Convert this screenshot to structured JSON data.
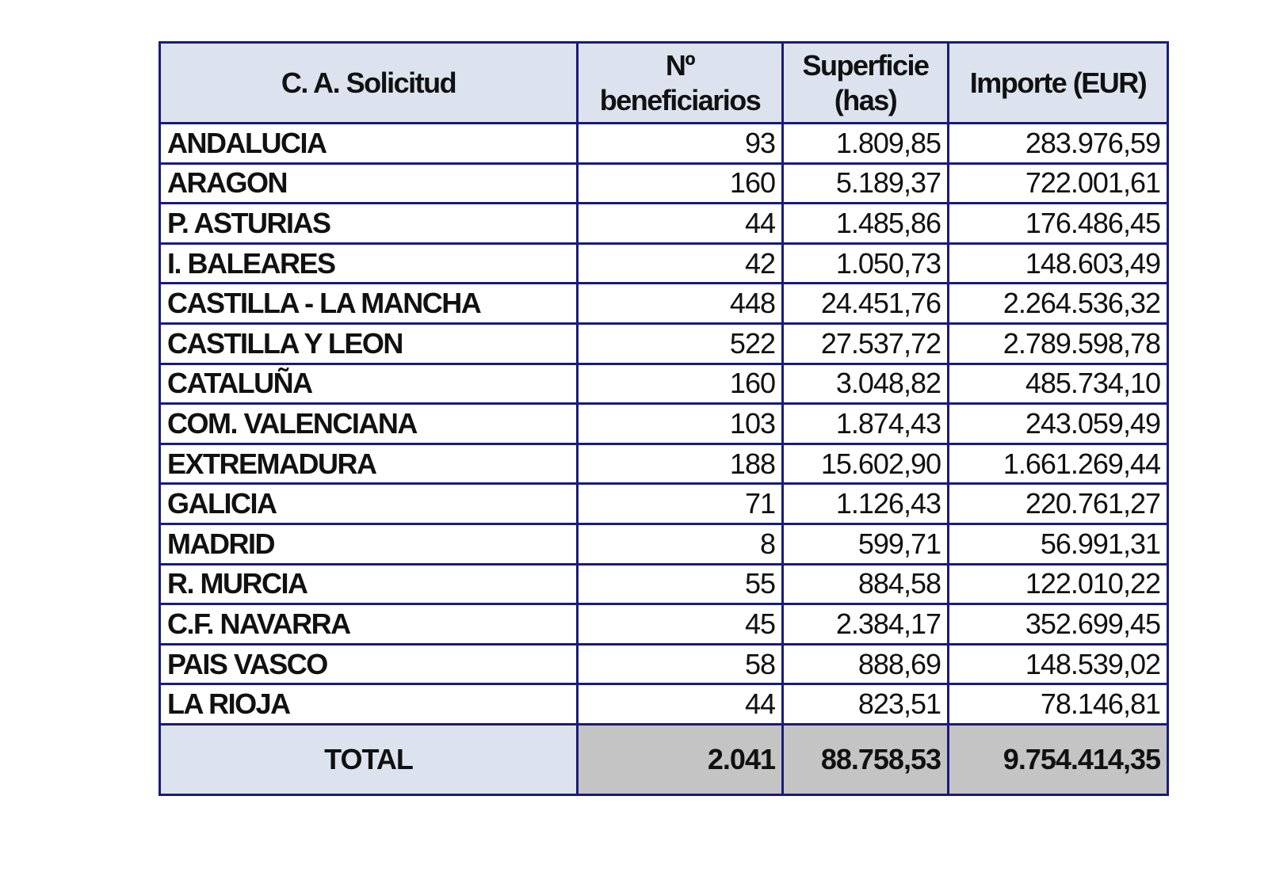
{
  "table": {
    "headers": [
      "C. A. Solicitud",
      "Nº beneficiarios",
      "Superficie (has)",
      "Importe (EUR)"
    ],
    "rows": [
      {
        "region": "ANDALUCIA",
        "beneficiarios": "93",
        "superficie": "1.809,85",
        "importe": "283.976,59"
      },
      {
        "region": "ARAGON",
        "beneficiarios": "160",
        "superficie": "5.189,37",
        "importe": "722.001,61"
      },
      {
        "region": "P. ASTURIAS",
        "beneficiarios": "44",
        "superficie": "1.485,86",
        "importe": "176.486,45"
      },
      {
        "region": "I. BALEARES",
        "beneficiarios": "42",
        "superficie": "1.050,73",
        "importe": "148.603,49"
      },
      {
        "region": "CASTILLA - LA MANCHA",
        "beneficiarios": "448",
        "superficie": "24.451,76",
        "importe": "2.264.536,32"
      },
      {
        "region": "CASTILLA Y LEON",
        "beneficiarios": "522",
        "superficie": "27.537,72",
        "importe": "2.789.598,78"
      },
      {
        "region": "CATALUÑA",
        "beneficiarios": "160",
        "superficie": "3.048,82",
        "importe": "485.734,10"
      },
      {
        "region": "COM. VALENCIANA",
        "beneficiarios": "103",
        "superficie": "1.874,43",
        "importe": "243.059,49"
      },
      {
        "region": "EXTREMADURA",
        "beneficiarios": "188",
        "superficie": "15.602,90",
        "importe": "1.661.269,44"
      },
      {
        "region": "GALICIA",
        "beneficiarios": "71",
        "superficie": "1.126,43",
        "importe": "220.761,27"
      },
      {
        "region": "MADRID",
        "beneficiarios": "8",
        "superficie": "599,71",
        "importe": "56.991,31"
      },
      {
        "region": "R. MURCIA",
        "beneficiarios": "55",
        "superficie": "884,58",
        "importe": "122.010,22"
      },
      {
        "region": "C.F. NAVARRA",
        "beneficiarios": "45",
        "superficie": "2.384,17",
        "importe": "352.699,45"
      },
      {
        "region": "PAIS VASCO",
        "beneficiarios": "58",
        "superficie": "888,69",
        "importe": "148.539,02"
      },
      {
        "region": "LA RIOJA",
        "beneficiarios": "44",
        "superficie": "823,51",
        "importe": "78.146,81"
      }
    ],
    "total": {
      "label": "TOTAL",
      "beneficiarios": "2.041",
      "superficie": "88.758,53",
      "importe": "9.754.414,35"
    }
  },
  "colors": {
    "border": "#1b1b78",
    "header_bg": "#dce3ef",
    "total_bg": "#c4c4c4"
  }
}
